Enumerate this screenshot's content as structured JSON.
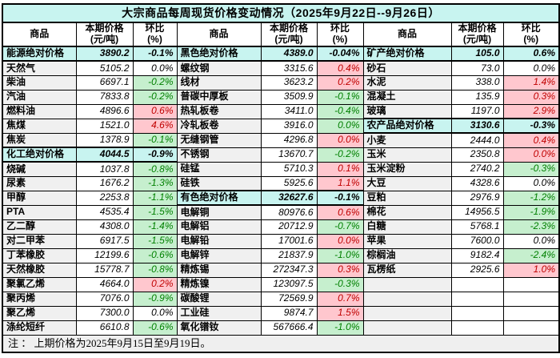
{
  "title": "大宗商品每周现货价格变动情况（2025年9月22日--9月26日）",
  "headers": {
    "commodity": "商品",
    "price_l1": "本期价格",
    "price_l2": "(元/吨)",
    "pct_l1": "环比",
    "pct_l2": "(%)"
  },
  "footnote": "注 ： 上期价格为2025年9月15日至9月19日。",
  "colors": {
    "title_bg": "#c8f4f0",
    "section_bg": "#c8f4f0",
    "increase_bg": "#ffc7ce",
    "increase_text": "#c00000",
    "decrease_bg": "#c6efce",
    "decrease_text": "#008000",
    "name_cell_bg": "#f0f0f0",
    "footer_bg": "#efefef",
    "border": "#000000"
  },
  "groups": [
    {
      "rows": [
        {
          "name": "能源绝对价格",
          "price": "3890.2",
          "pct": "-0.1%",
          "style": "sec"
        },
        {
          "name": "天然气",
          "price": "5105.2",
          "pct": "0.0%",
          "style": "flat"
        },
        {
          "name": "柴油",
          "price": "6697.1",
          "pct": "-0.2%",
          "style": "down"
        },
        {
          "name": "汽油",
          "price": "7833.8",
          "pct": "-0.2%",
          "style": "down"
        },
        {
          "name": "燃料油",
          "price": "4896.6",
          "pct": "0.6%",
          "style": "up"
        },
        {
          "name": "焦煤",
          "price": "1521.0",
          "pct": "4.6%",
          "style": "up"
        },
        {
          "name": "焦炭",
          "price": "1378.9",
          "pct": "-0.1%",
          "style": "down"
        },
        {
          "name": "化工绝对价格",
          "price": "4044.5",
          "pct": "-0.9%",
          "style": "sec"
        },
        {
          "name": "烧碱",
          "price": "1037.8",
          "pct": "-0.8%",
          "style": "down"
        },
        {
          "name": "尿素",
          "price": "1676.2",
          "pct": "-1.3%",
          "style": "down"
        },
        {
          "name": "甲醇",
          "price": "2253.8",
          "pct": "-1.1%",
          "style": "down"
        },
        {
          "name": "PTA",
          "price": "4535.4",
          "pct": "-1.5%",
          "style": "down"
        },
        {
          "name": "乙二醇",
          "price": "4308.0",
          "pct": "-1.4%",
          "style": "down"
        },
        {
          "name": "对二甲苯",
          "price": "6917.5",
          "pct": "-1.5%",
          "style": "down"
        },
        {
          "name": "丁苯橡胶",
          "price": "12199.6",
          "pct": "-0.6%",
          "style": "down"
        },
        {
          "name": "天然橡胶",
          "price": "15778.7",
          "pct": "-0.8%",
          "style": "down"
        },
        {
          "name": "聚氯乙烯",
          "price": "4664.0",
          "pct": "0.2%",
          "style": "up"
        },
        {
          "name": "聚丙烯",
          "price": "7076.0",
          "pct": "-0.9%",
          "style": "down"
        },
        {
          "name": "聚乙烯",
          "price": "7300.0",
          "pct": "0.0%",
          "style": "flat"
        },
        {
          "name": "涤纶短纤",
          "price": "6610.8",
          "pct": "-0.6%",
          "style": "down"
        }
      ]
    },
    {
      "rows": [
        {
          "name": "黑色绝对价格",
          "price": "4389.0",
          "pct": "-0.04%",
          "style": "sec"
        },
        {
          "name": "螺纹钢",
          "price": "3315.6",
          "pct": "0.4%",
          "style": "up"
        },
        {
          "name": "线材",
          "price": "3623.2",
          "pct": "0.2%",
          "style": "up"
        },
        {
          "name": "普碳中厚板",
          "price": "3509.9",
          "pct": "-0.1%",
          "style": "down"
        },
        {
          "name": "热轧板卷",
          "price": "3411.0",
          "pct": "-0.4%",
          "style": "down"
        },
        {
          "name": "冷轧板卷",
          "price": "3916.0",
          "pct": "0.0%",
          "style": "down"
        },
        {
          "name": "无缝钢管",
          "price": "4296.8",
          "pct": "0.0%",
          "style": "up"
        },
        {
          "name": "不锈钢",
          "price": "13670.7",
          "pct": "-0.2%",
          "style": "down"
        },
        {
          "name": "硅锰",
          "price": "5710.3",
          "pct": "0.1%",
          "style": "up"
        },
        {
          "name": "硅铁",
          "price": "5925.6",
          "pct": "1.1%",
          "style": "up"
        },
        {
          "name": "有色绝对价格",
          "price": "32627.6",
          "pct": "-0.1%",
          "style": "sec"
        },
        {
          "name": "电解铜",
          "price": "80976.6",
          "pct": "0.6%",
          "style": "up"
        },
        {
          "name": "电解铝",
          "price": "20712.9",
          "pct": "-0.7%",
          "style": "down"
        },
        {
          "name": "电解铅",
          "price": "17001.6",
          "pct": "0.0%",
          "style": "up"
        },
        {
          "name": "电解锌",
          "price": "21837.9",
          "pct": "-1.0%",
          "style": "down"
        },
        {
          "name": "精炼锡",
          "price": "272347.3",
          "pct": "0.3%",
          "style": "up"
        },
        {
          "name": "精炼镍",
          "price": "123097.5",
          "pct": "-0.3%",
          "style": "down"
        },
        {
          "name": "碳酸锂",
          "price": "72569.9",
          "pct": "0.7%",
          "style": "up"
        },
        {
          "name": "工业硅",
          "price": "9874.7",
          "pct": "1.5%",
          "style": "up"
        },
        {
          "name": "氧化镨钕",
          "price": "567666.4",
          "pct": "-1.0%",
          "style": "down"
        }
      ]
    },
    {
      "rows": [
        {
          "name": "矿产绝对价格",
          "price": "105.0",
          "pct": "0.6%",
          "style": "sec"
        },
        {
          "name": "砂石",
          "price": "73.0",
          "pct": "0.0%",
          "style": "flat"
        },
        {
          "name": "水泥",
          "price": "338.0",
          "pct": "1.4%",
          "style": "up"
        },
        {
          "name": "混凝土",
          "price": "135.9",
          "pct": "0.3%",
          "style": "up"
        },
        {
          "name": "玻璃",
          "price": "1197.0",
          "pct": "2.9%",
          "style": "up"
        },
        {
          "name": "农产品绝对价格",
          "price": "3130.6",
          "pct": "-0.3%",
          "style": "sec"
        },
        {
          "name": "小麦",
          "price": "2444.0",
          "pct": "0.4%",
          "style": "up"
        },
        {
          "name": "玉米",
          "price": "2350.8",
          "pct": "0.0%",
          "style": "up"
        },
        {
          "name": "玉米淀粉",
          "price": "2740.2",
          "pct": "-0.3%",
          "style": "down"
        },
        {
          "name": "大豆",
          "price": "4328.6",
          "pct": "0.0%",
          "style": "flat"
        },
        {
          "name": "豆粕",
          "price": "2976.9",
          "pct": "-1.2%",
          "style": "down"
        },
        {
          "name": "棉花",
          "price": "14956.5",
          "pct": "-1.9%",
          "style": "down"
        },
        {
          "name": "白糖",
          "price": "5768.1",
          "pct": "-2.3%",
          "style": "down"
        },
        {
          "name": "苹果",
          "price": "7600.0",
          "pct": "0.0%",
          "style": "flat"
        },
        {
          "name": "棕榈油",
          "price": "9182.4",
          "pct": "-2.4%",
          "style": "down"
        },
        {
          "name": "瓦楞纸",
          "price": "2925.6",
          "pct": "1.0%",
          "style": "up"
        },
        {
          "name": "",
          "price": "",
          "pct": "",
          "style": "empty"
        },
        {
          "name": "",
          "price": "",
          "pct": "",
          "style": "empty"
        },
        {
          "name": "",
          "price": "",
          "pct": "",
          "style": "empty"
        },
        {
          "name": "",
          "price": "",
          "pct": "",
          "style": "empty"
        }
      ]
    }
  ]
}
